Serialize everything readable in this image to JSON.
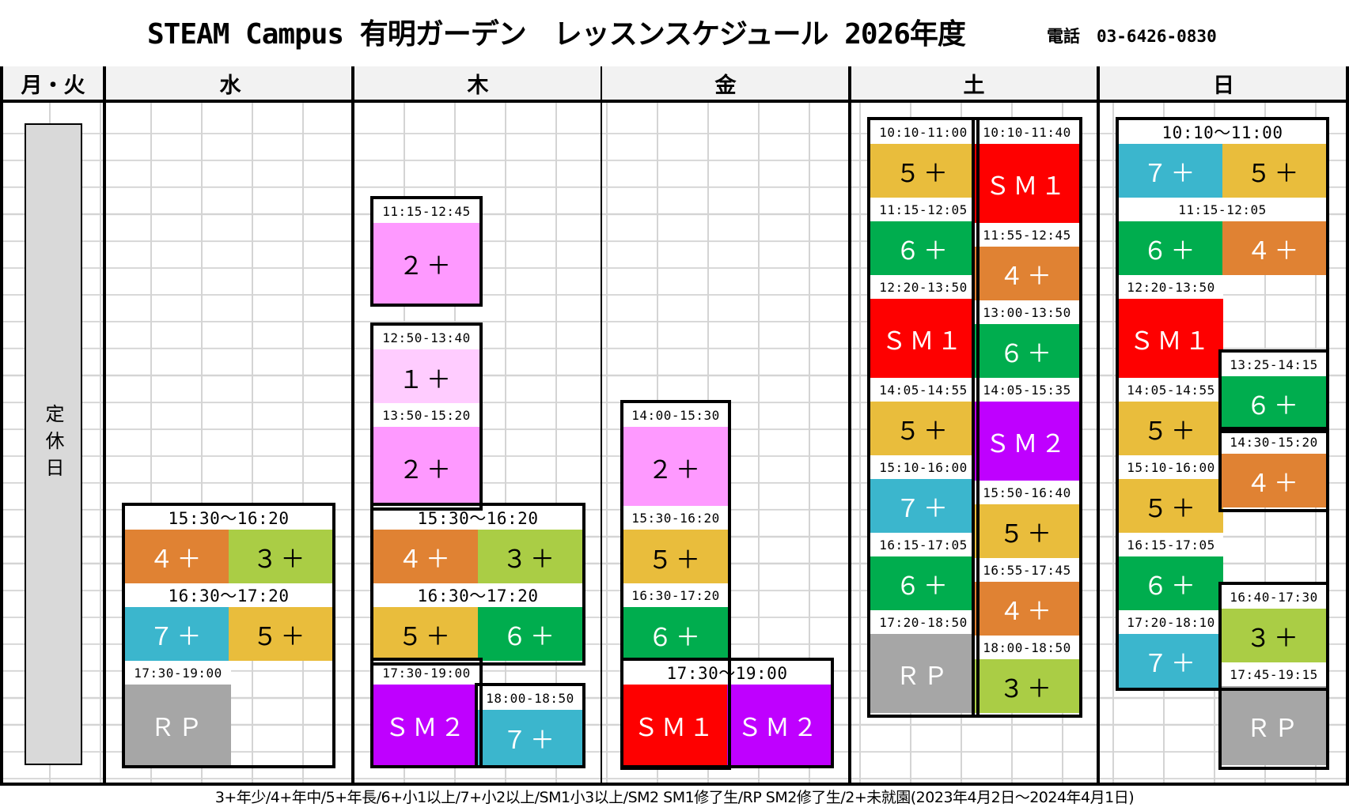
{
  "header": {
    "title": "STEAM Campus 有明ガーデン　レッスンスケジュール 2026年度",
    "phone": "電話　03-6426-0830"
  },
  "days": [
    "月・火",
    "水",
    "木",
    "金",
    "土",
    "日"
  ],
  "closed_label": "定休日",
  "colors": {
    "3+": "#aacd45",
    "4+": "#e08233",
    "5+": "#e9bd3c",
    "6+": "#00ad4e",
    "7+": "#3bb6cd",
    "SM1": "#fe0000",
    "SM2": "#bf00ff",
    "RP": "#a6a6a6",
    "2+": "#fe99ff",
    "1+": "#ffccff"
  },
  "blocks": [
    {
      "t": "15:30〜16:20",
      "big": true,
      "c": [
        {
          "l": "４＋",
          "k": "4+"
        },
        {
          "l": "３＋",
          "k": "3+"
        }
      ]
    },
    {
      "t": "16:30〜17:20",
      "big": true,
      "c": [
        {
          "l": "７＋",
          "k": "7+"
        },
        {
          "l": "５＋",
          "k": "5+"
        }
      ]
    },
    {
      "t": "17:30-19:00",
      "c": [
        {
          "l": "ＲＰ",
          "k": "RP"
        }
      ]
    },
    {
      "t": "11:15-12:45",
      "c": [
        {
          "l": "２＋",
          "k": "2+"
        }
      ]
    },
    {
      "t": "12:50-13:40",
      "c": [
        {
          "l": "１＋",
          "k": "1+"
        }
      ]
    },
    {
      "t": "13:50-15:20",
      "c": [
        {
          "l": "２＋",
          "k": "2+"
        }
      ]
    },
    {
      "t": "15:30〜16:20",
      "big": true,
      "c": [
        {
          "l": "４＋",
          "k": "4+"
        },
        {
          "l": "３＋",
          "k": "3+"
        }
      ]
    },
    {
      "t": "16:30〜17:20",
      "big": true,
      "c": [
        {
          "l": "５＋",
          "k": "5+"
        },
        {
          "l": "６＋",
          "k": "6+"
        }
      ]
    },
    {
      "t": "17:30-19:00",
      "c": [
        {
          "l": "ＳＭ２",
          "k": "SM2"
        }
      ]
    },
    {
      "t": "18:00-18:50",
      "c": [
        {
          "l": "７＋",
          "k": "7+"
        }
      ]
    },
    {
      "t": "14:00-15:30",
      "c": [
        {
          "l": "２＋",
          "k": "2+"
        }
      ]
    },
    {
      "t": "15:30-16:20",
      "c": [
        {
          "l": "５＋",
          "k": "5+"
        }
      ]
    },
    {
      "t": "16:30-17:20",
      "c": [
        {
          "l": "６＋",
          "k": "6+"
        }
      ]
    },
    {
      "t": "17:30〜19:00",
      "big": true,
      "c": [
        {
          "l": "ＳＭ１",
          "k": "SM1"
        },
        {
          "l": "ＳＭ２",
          "k": "SM2"
        }
      ]
    },
    {
      "t": "10:10-11:00",
      "c": [
        {
          "l": "５＋",
          "k": "5+"
        }
      ]
    },
    {
      "t": "11:15-12:05",
      "c": [
        {
          "l": "６＋",
          "k": "6+"
        }
      ]
    },
    {
      "t": "12:20-13:50",
      "c": [
        {
          "l": "ＳＭ１",
          "k": "SM1"
        }
      ]
    },
    {
      "t": "14:05-14:55",
      "c": [
        {
          "l": "５＋",
          "k": "5+"
        }
      ]
    },
    {
      "t": "15:10-16:00",
      "c": [
        {
          "l": "７＋",
          "k": "7+"
        }
      ]
    },
    {
      "t": "16:15-17:05",
      "c": [
        {
          "l": "６＋",
          "k": "6+"
        }
      ]
    },
    {
      "t": "17:20-18:50",
      "c": [
        {
          "l": "ＲＰ",
          "k": "RP"
        }
      ]
    },
    {
      "t": "10:10-11:40",
      "c": [
        {
          "l": "ＳＭ１",
          "k": "SM1"
        }
      ]
    },
    {
      "t": "11:55-12:45",
      "c": [
        {
          "l": "４＋",
          "k": "4+"
        }
      ]
    },
    {
      "t": "13:00-13:50",
      "c": [
        {
          "l": "６＋",
          "k": "6+"
        }
      ]
    },
    {
      "t": "14:05-15:35",
      "c": [
        {
          "l": "ＳＭ２",
          "k": "SM2"
        }
      ]
    },
    {
      "t": "15:50-16:40",
      "c": [
        {
          "l": "５＋",
          "k": "5+"
        }
      ]
    },
    {
      "t": "16:55-17:45",
      "c": [
        {
          "l": "４＋",
          "k": "4+"
        }
      ]
    },
    {
      "t": "18:00-18:50",
      "c": [
        {
          "l": "３＋",
          "k": "3+"
        }
      ]
    },
    {
      "t": "10:10〜11:00",
      "big": true,
      "c": [
        {
          "l": "７＋",
          "k": "7+"
        },
        {
          "l": "５＋",
          "k": "5+"
        }
      ]
    },
    {
      "t": "11:15-12:05",
      "c": [
        {
          "l": "６＋",
          "k": "6+"
        },
        {
          "l": "４＋",
          "k": "4+"
        }
      ]
    },
    {
      "t": "12:20-13:50",
      "c": [
        {
          "l": "ＳＭ１",
          "k": "SM1"
        }
      ]
    },
    {
      "t": "14:05-14:55",
      "c": [
        {
          "l": "５＋",
          "k": "5+"
        }
      ]
    },
    {
      "t": "15:10-16:00",
      "c": [
        {
          "l": "５＋",
          "k": "5+"
        }
      ]
    },
    {
      "t": "16:15-17:05",
      "c": [
        {
          "l": "６＋",
          "k": "6+"
        }
      ]
    },
    {
      "t": "17:20-18:10",
      "c": [
        {
          "l": "７＋",
          "k": "7+"
        }
      ]
    },
    {
      "t": "13:25-14:15",
      "c": [
        {
          "l": "６＋",
          "k": "6+"
        }
      ]
    },
    {
      "t": "14:30-15:20",
      "c": [
        {
          "l": "４＋",
          "k": "4+"
        }
      ]
    },
    {
      "t": "16:40-17:30",
      "c": [
        {
          "l": "３＋",
          "k": "3+"
        }
      ]
    },
    {
      "t": "17:45-19:15",
      "c": [
        {
          "l": "ＲＰ",
          "k": "RP"
        }
      ]
    }
  ],
  "footer": "3+年少/4+年中/5+年長/6+小1以上/7+小2以上/SM1小3以上/SM2 SM1修了生/RP SM2修了生/2+未就園(2023年4月2日〜2024年4月1日)"
}
